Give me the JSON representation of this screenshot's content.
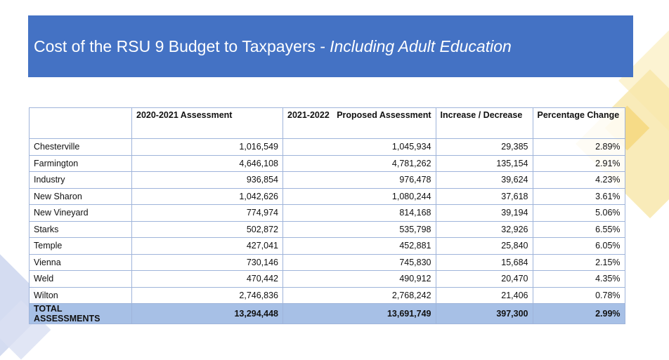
{
  "title": {
    "main": "Cost of the RSU 9 Budget to Taxpayers -",
    "italic": "Including Adult Education"
  },
  "table": {
    "headers": [
      "",
      "2020-2021 Assessment",
      "2021-2022   Proposed Assessment",
      "Increase / Decrease",
      "Percentage Change"
    ],
    "rows": [
      [
        "Chesterville",
        "1,016,549",
        "1,045,934",
        "29,385",
        "2.89%"
      ],
      [
        "Farmington",
        "4,646,108",
        "4,781,262",
        "135,154",
        "2.91%"
      ],
      [
        "Industry",
        "936,854",
        "976,478",
        "39,624",
        "4.23%"
      ],
      [
        "New Sharon",
        "1,042,626",
        "1,080,244",
        "37,618",
        "3.61%"
      ],
      [
        "New Vineyard",
        "774,974",
        "814,168",
        "39,194",
        "5.06%"
      ],
      [
        "Starks",
        "502,872",
        "535,798",
        "32,926",
        "6.55%"
      ],
      [
        "Temple",
        "427,041",
        "452,881",
        "25,840",
        "6.05%"
      ],
      [
        "Vienna",
        "730,146",
        "745,830",
        "15,684",
        "2.15%"
      ],
      [
        "Weld",
        "470,442",
        "490,912",
        "20,470",
        "4.35%"
      ],
      [
        "Wilton",
        "2,746,836",
        "2,768,242",
        "21,406",
        "0.78%"
      ]
    ],
    "total": [
      "TOTAL ASSESSMENTS",
      "13,294,448",
      "13,691,749",
      "397,300",
      "2.99%"
    ]
  },
  "colors": {
    "banner": "#4472c4",
    "total_row": "#a7c0e6",
    "border": "#9fb4da"
  }
}
